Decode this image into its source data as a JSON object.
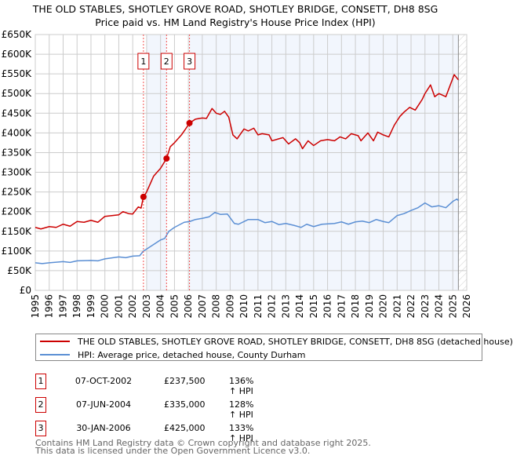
{
  "chart_data": {
    "type": "line",
    "title": "THE OLD STABLES, SHOTLEY GROVE ROAD, SHOTLEY BRIDGE, CONSETT, DH8 8SG",
    "subtitle": "Price paid vs. HM Land Registry's House Price Index (HPI)",
    "xlim": [
      1995,
      2026
    ],
    "ylim": [
      0,
      650000
    ],
    "x_ticks": [
      "1995",
      "1996",
      "1997",
      "1998",
      "1999",
      "2000",
      "2001",
      "2002",
      "2003",
      "2004",
      "2005",
      "2006",
      "2007",
      "2008",
      "2009",
      "2010",
      "2011",
      "2012",
      "2013",
      "2014",
      "2015",
      "2016",
      "2017",
      "2018",
      "2019",
      "2020",
      "2021",
      "2022",
      "2023",
      "2024",
      "2025",
      "2026"
    ],
    "y_ticks": [
      "£0",
      "£50K",
      "£100K",
      "£150K",
      "£200K",
      "£250K",
      "£300K",
      "£350K",
      "£400K",
      "£450K",
      "£500K",
      "£550K",
      "£600K",
      "£650K"
    ],
    "grid": true,
    "future_hatch_from": 2025.4,
    "series": [
      {
        "name": "THE OLD STABLES, SHOTLEY GROVE ROAD, SHOTLEY BRIDGE, CONSETT, DH8 8SG (detached house)",
        "color": "#cc0000",
        "points": [
          [
            1995,
            160
          ],
          [
            1995.4,
            156
          ],
          [
            1996,
            162
          ],
          [
            1996.5,
            160
          ],
          [
            1997,
            168
          ],
          [
            1997.5,
            163
          ],
          [
            1998,
            175
          ],
          [
            1998.5,
            173
          ],
          [
            1999,
            178
          ],
          [
            1999.5,
            173
          ],
          [
            2000,
            188
          ],
          [
            2000.5,
            190
          ],
          [
            2001,
            192
          ],
          [
            2001.3,
            200
          ],
          [
            2001.7,
            195
          ],
          [
            2002,
            194
          ],
          [
            2002.4,
            212
          ],
          [
            2002.6,
            209
          ],
          [
            2002.77,
            237.5
          ],
          [
            2003,
            250
          ],
          [
            2003.5,
            290
          ],
          [
            2004,
            310
          ],
          [
            2004.43,
            335
          ],
          [
            2004.7,
            365
          ],
          [
            2005,
            375
          ],
          [
            2005.5,
            395
          ],
          [
            2005.8,
            410
          ],
          [
            2006.08,
            425
          ],
          [
            2006.5,
            435
          ],
          [
            2007,
            438
          ],
          [
            2007.3,
            437
          ],
          [
            2007.7,
            462
          ],
          [
            2008,
            450
          ],
          [
            2008.3,
            447
          ],
          [
            2008.6,
            455
          ],
          [
            2008.9,
            440
          ],
          [
            2009.2,
            395
          ],
          [
            2009.5,
            385
          ],
          [
            2010,
            410
          ],
          [
            2010.3,
            405
          ],
          [
            2010.7,
            412
          ],
          [
            2011,
            395
          ],
          [
            2011.3,
            398
          ],
          [
            2011.8,
            395
          ],
          [
            2012,
            380
          ],
          [
            2012.5,
            385
          ],
          [
            2012.8,
            388
          ],
          [
            2013.2,
            372
          ],
          [
            2013.7,
            385
          ],
          [
            2014,
            375
          ],
          [
            2014.2,
            360
          ],
          [
            2014.6,
            380
          ],
          [
            2015,
            368
          ],
          [
            2015.5,
            380
          ],
          [
            2016,
            383
          ],
          [
            2016.5,
            380
          ],
          [
            2016.9,
            390
          ],
          [
            2017.3,
            385
          ],
          [
            2017.7,
            398
          ],
          [
            2018.2,
            393
          ],
          [
            2018.4,
            380
          ],
          [
            2018.9,
            400
          ],
          [
            2019.3,
            380
          ],
          [
            2019.6,
            402
          ],
          [
            2020,
            395
          ],
          [
            2020.4,
            390
          ],
          [
            2020.8,
            420
          ],
          [
            2021.2,
            442
          ],
          [
            2021.5,
            453
          ],
          [
            2021.9,
            465
          ],
          [
            2022.3,
            458
          ],
          [
            2022.8,
            485
          ],
          [
            2023,
            500
          ],
          [
            2023.4,
            522
          ],
          [
            2023.7,
            492
          ],
          [
            2024,
            500
          ],
          [
            2024.5,
            492
          ],
          [
            2024.8,
            520
          ],
          [
            2025.1,
            548
          ],
          [
            2025.4,
            535
          ]
        ]
      },
      {
        "name": "HPI: Average price, detached house, County Durham",
        "color": "#5b8fd4",
        "points": [
          [
            1995,
            70
          ],
          [
            1995.5,
            68
          ],
          [
            1996,
            70
          ],
          [
            1997,
            73
          ],
          [
            1997.5,
            71
          ],
          [
            1998,
            75
          ],
          [
            1999,
            76
          ],
          [
            1999.5,
            75
          ],
          [
            2000,
            80
          ],
          [
            2001,
            85
          ],
          [
            2001.5,
            83
          ],
          [
            2002,
            87
          ],
          [
            2002.5,
            88
          ],
          [
            2002.77,
            100
          ],
          [
            2003,
            105
          ],
          [
            2004,
            128
          ],
          [
            2004.3,
            132
          ],
          [
            2004.6,
            150
          ],
          [
            2005,
            160
          ],
          [
            2005.7,
            173
          ],
          [
            2006.1,
            175
          ],
          [
            2006.5,
            180
          ],
          [
            2007,
            183
          ],
          [
            2007.5,
            187
          ],
          [
            2007.9,
            198
          ],
          [
            2008.3,
            193
          ],
          [
            2008.8,
            194
          ],
          [
            2009.3,
            170
          ],
          [
            2009.6,
            168
          ],
          [
            2010.3,
            180
          ],
          [
            2011,
            180
          ],
          [
            2011.5,
            172
          ],
          [
            2012,
            175
          ],
          [
            2012.5,
            167
          ],
          [
            2013,
            170
          ],
          [
            2013.6,
            165
          ],
          [
            2014.1,
            160
          ],
          [
            2014.5,
            168
          ],
          [
            2015,
            162
          ],
          [
            2015.6,
            168
          ],
          [
            2016.5,
            170
          ],
          [
            2017,
            174
          ],
          [
            2017.5,
            168
          ],
          [
            2018,
            174
          ],
          [
            2018.5,
            176
          ],
          [
            2019,
            172
          ],
          [
            2019.5,
            180
          ],
          [
            2020,
            175
          ],
          [
            2020.4,
            172
          ],
          [
            2021,
            190
          ],
          [
            2021.5,
            195
          ],
          [
            2022,
            203
          ],
          [
            2022.5,
            210
          ],
          [
            2023,
            222
          ],
          [
            2023.5,
            212
          ],
          [
            2024,
            215
          ],
          [
            2024.5,
            210
          ],
          [
            2025,
            226
          ],
          [
            2025.3,
            232
          ],
          [
            2025.4,
            228
          ]
        ]
      }
    ],
    "sales": [
      {
        "label": "1",
        "x": 2002.77,
        "value": 237.5
      },
      {
        "label": "2",
        "x": 2004.43,
        "value": 335
      },
      {
        "label": "3",
        "x": 2006.08,
        "value": 425
      }
    ],
    "value_units": "£K"
  },
  "legend": {
    "property": "THE OLD STABLES, SHOTLEY GROVE ROAD, SHOTLEY BRIDGE, CONSETT, DH8 8SG (detached house)",
    "hpi": "HPI: Average price, detached house, County Durham"
  },
  "transactions": [
    {
      "num": "1",
      "date": "07-OCT-2002",
      "price": "£237,500",
      "hpi": "136% ↑ HPI"
    },
    {
      "num": "2",
      "date": "07-JUN-2004",
      "price": "£335,000",
      "hpi": "128% ↑ HPI"
    },
    {
      "num": "3",
      "date": "30-JAN-2006",
      "price": "£425,000",
      "hpi": "133% ↑ HPI"
    }
  ],
  "footer": {
    "line1": "Contains HM Land Registry data © Crown copyright and database right 2025.",
    "line2": "This data is licensed under the Open Government Licence v3.0."
  }
}
